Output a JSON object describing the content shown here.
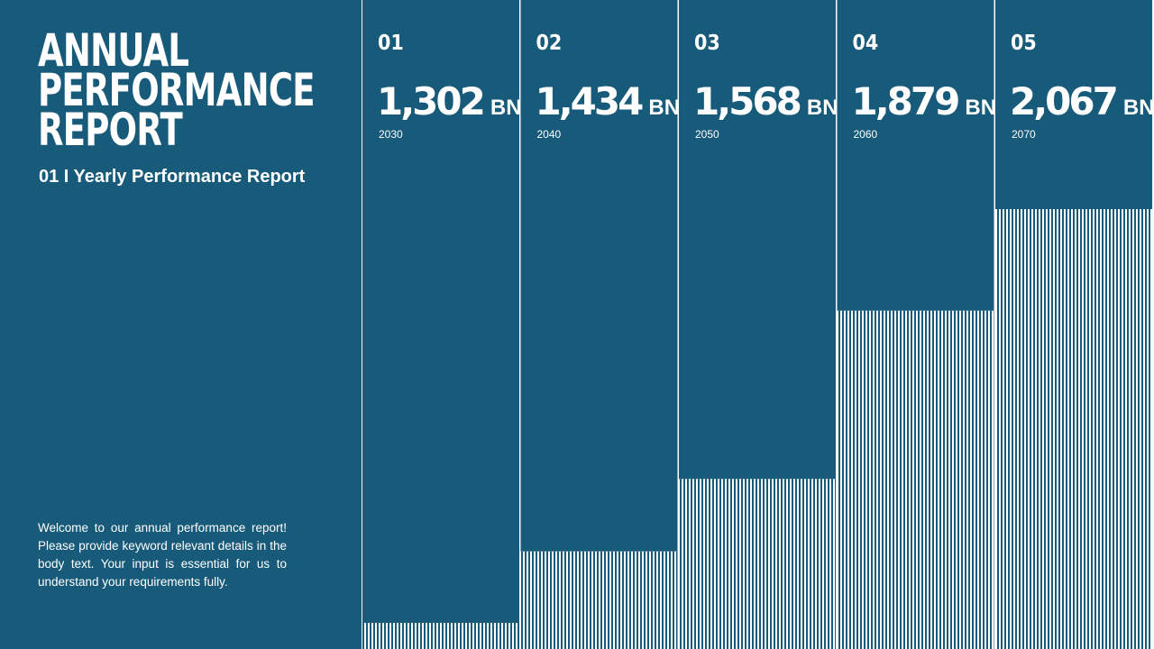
{
  "header": {
    "title_lines": [
      "ANNUAL",
      "PERFORMANCE",
      "REPORT"
    ],
    "subtitle": "01 I Yearly Performance Report"
  },
  "body_text": "Welcome to our annual performance report! Please provide keyword relevant details in the body text. Your input is essential for us to understand your requirements fully.",
  "colors": {
    "primary": "#175a79",
    "background": "#fafafa",
    "text": "#ffffff"
  },
  "chart_data": {
    "type": "bar",
    "title": "Yearly Performance",
    "unit": "BN",
    "ylim": [
      0,
      2067
    ],
    "categories": [
      "2030",
      "2040",
      "2050",
      "2060",
      "2070"
    ],
    "indices": [
      "01",
      "02",
      "03",
      "04",
      "05"
    ],
    "values": [
      1302,
      1434,
      1568,
      1879,
      2067
    ],
    "value_labels": [
      "1,302",
      "1,434",
      "1,568",
      "1,879",
      "2,067"
    ]
  }
}
